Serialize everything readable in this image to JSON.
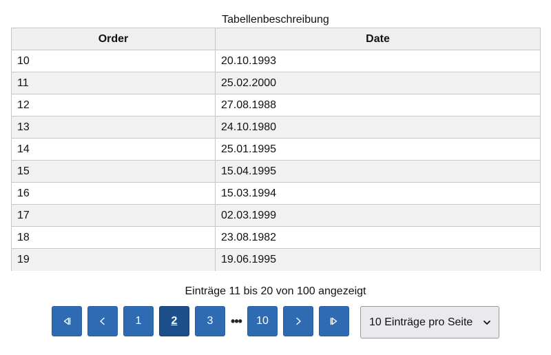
{
  "caption": "Tabellenbeschreibung",
  "table": {
    "headers": [
      "Order",
      "Date"
    ],
    "rows": [
      {
        "order": "10",
        "date": "20.10.1993"
      },
      {
        "order": "11",
        "date": "25.02.2000"
      },
      {
        "order": "12",
        "date": "27.08.1988"
      },
      {
        "order": "13",
        "date": "24.10.1980"
      },
      {
        "order": "14",
        "date": "25.01.1995"
      },
      {
        "order": "15",
        "date": "15.04.1995"
      },
      {
        "order": "16",
        "date": "15.03.1994"
      },
      {
        "order": "17",
        "date": "02.03.1999"
      },
      {
        "order": "18",
        "date": "23.08.1982"
      },
      {
        "order": "19",
        "date": "19.06.1995"
      }
    ]
  },
  "info_text": "Einträge 11 bis 20 von 100 angezeigt",
  "pagination": {
    "first_icon": "first-page-icon",
    "prev_icon": "chevron-left-icon",
    "next_icon": "chevron-right-icon",
    "last_icon": "last-page-icon",
    "pages": [
      "1",
      "2",
      "3",
      "10"
    ],
    "current_page": "2",
    "ellipsis": "•••"
  },
  "page_size_select": {
    "selected": "10 Einträge pro Seite",
    "icon": "chevron-down-icon"
  },
  "colors": {
    "button": "#2f6bb2",
    "button_active": "#1d4f8b",
    "header_bg": "#efefef",
    "row_alt_bg": "#f1f1f1"
  }
}
